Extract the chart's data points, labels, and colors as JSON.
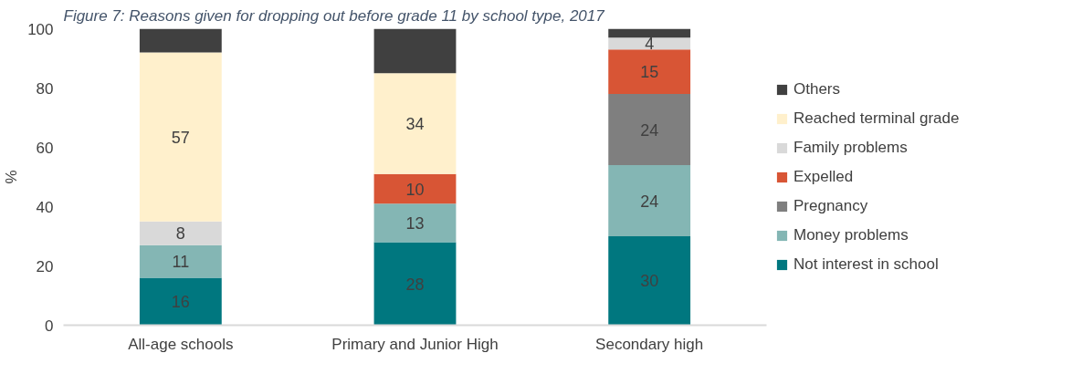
{
  "chart_data": {
    "type": "bar",
    "stacked": true,
    "title": "Figure 7: Reasons given for dropping out before grade 11 by school type, 2017",
    "ylabel": "%",
    "categories": [
      "All-age schools",
      "Primary and Junior High",
      "Secondary high"
    ],
    "series": [
      {
        "name": "Not interest in school",
        "color": "#00777f",
        "values": [
          16,
          28,
          30
        ],
        "value_labels": [
          "16",
          "28",
          "30"
        ]
      },
      {
        "name": "Money problems",
        "color": "#84b6b4",
        "values": [
          11,
          13,
          24
        ],
        "value_labels": [
          "11",
          "13",
          "24"
        ]
      },
      {
        "name": "Pregnancy",
        "color": "#7f7f7f",
        "values": [
          0,
          0,
          24
        ],
        "value_labels": [
          null,
          null,
          "24"
        ]
      },
      {
        "name": "Expelled",
        "color": "#d85535",
        "values": [
          0,
          10,
          15
        ],
        "value_labels": [
          null,
          "10",
          "15"
        ]
      },
      {
        "name": "Family problems",
        "color": "#d9d9d9",
        "values": [
          8,
          0,
          4
        ],
        "value_labels": [
          "8",
          null,
          "4"
        ]
      },
      {
        "name": "Reached terminal grade",
        "color": "#fff0cc",
        "values": [
          57,
          34,
          0
        ],
        "value_labels": [
          "57",
          "34",
          null
        ]
      },
      {
        "name": "Others",
        "color": "#404040",
        "values": [
          8,
          15,
          3
        ],
        "value_labels": [
          null,
          null,
          null
        ]
      }
    ],
    "ylim": [
      0,
      100
    ],
    "yticks": [
      0,
      20,
      40,
      60,
      80,
      100
    ],
    "grid": false,
    "legend": "right"
  }
}
